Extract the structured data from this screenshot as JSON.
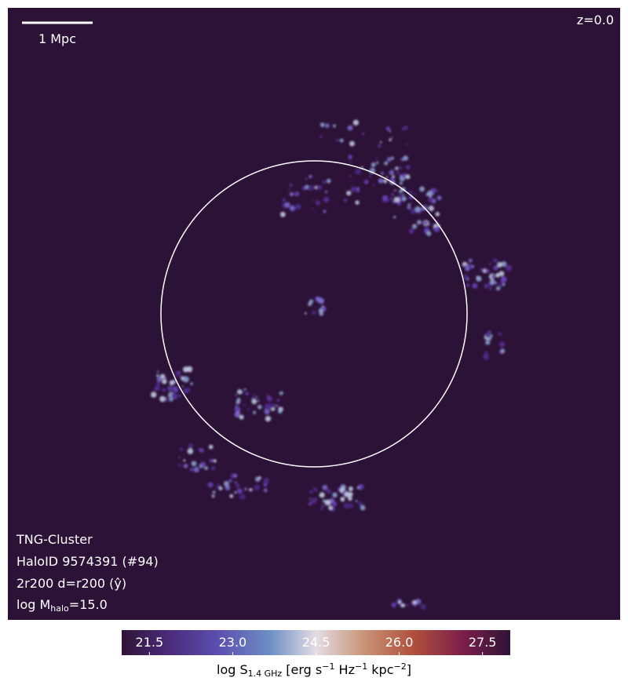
{
  "scale_bar": {
    "label": "1 Mpc"
  },
  "redshift": "z=0.0",
  "annotations": {
    "simulation": "TNG-Cluster",
    "halo_id": "HaloID 9574391 (#94)",
    "projection": "2r200 d=r200 (ŷ)",
    "mass": [
      "log M",
      "halo",
      "=15.0"
    ]
  },
  "colorbar": {
    "clim": [
      21,
      28
    ],
    "ticks": [
      21.5,
      {
        "value": 23,
        "label": "23.0"
      },
      24.5,
      {
        "value": 26,
        "label": "26.0"
      },
      27.5
    ],
    "label": [
      "log S",
      "1.4 GHz",
      " [erg s",
      "−1",
      " Hz",
      "−1",
      " kpc",
      "−2",
      "]"
    ]
  }
}
